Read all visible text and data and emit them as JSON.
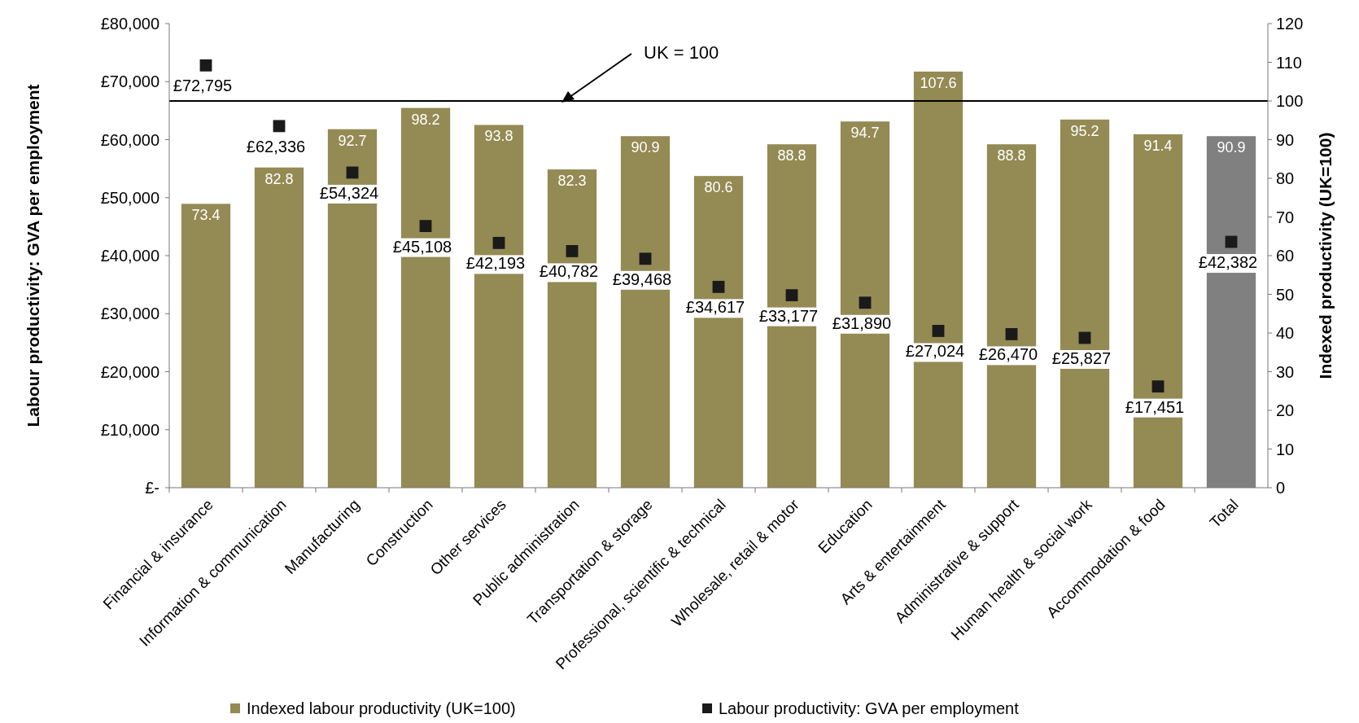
{
  "chart_data": {
    "type": "bar",
    "categories": [
      "Financial & insurance",
      "Information & communication",
      "Manufacturing",
      "Construction",
      "Other services",
      "Public administration",
      "Transportation & storage",
      "Professional, scientific & technical",
      "Wholesale, retail & motor",
      "Education",
      "Arts & entertainment",
      "Administrative & support",
      "Human health & social work",
      "Accommodation & food",
      "Total"
    ],
    "series": [
      {
        "name": "Indexed labour productivity (UK=100)",
        "axis": "y2",
        "color": "#948a54",
        "colors": [
          "#948a54",
          "#948a54",
          "#948a54",
          "#948a54",
          "#948a54",
          "#948a54",
          "#948a54",
          "#948a54",
          "#948a54",
          "#948a54",
          "#948a54",
          "#948a54",
          "#948a54",
          "#948a54",
          "#808080"
        ],
        "values": [
          73.4,
          82.8,
          92.7,
          98.2,
          93.8,
          82.3,
          90.9,
          80.6,
          88.8,
          94.7,
          107.6,
          88.8,
          95.2,
          91.4,
          90.9
        ]
      },
      {
        "name": "Labour productivity: GVA per employment",
        "type": "scatter",
        "color": "#1a1a1a",
        "marker": "square",
        "values": [
          72795,
          62336,
          54324,
          45108,
          42193,
          40782,
          39468,
          34617,
          33177,
          31890,
          27024,
          26470,
          25827,
          17451,
          42382
        ],
        "value_labels": [
          "£72,795",
          "£62,336",
          "£54,324",
          "£45,108",
          "£42,193",
          "£40,782",
          "£39,468",
          "£34,617",
          "£33,177",
          "£31,890",
          "£27,024",
          "£26,470",
          "£25,827",
          "£17,451",
          "£42,382"
        ]
      }
    ],
    "ylabel": "Labour productivity: GVA per employment",
    "y2label": "Indexed productivity (UK=100)",
    "ylim": [
      0,
      80000
    ],
    "yticks": [
      {
        "value": 0,
        "label": "£-"
      },
      {
        "value": 10000,
        "label": "£10,000"
      },
      {
        "value": 20000,
        "label": "£20,000"
      },
      {
        "value": 30000,
        "label": "£30,000"
      },
      {
        "value": 40000,
        "label": "£40,000"
      },
      {
        "value": 50000,
        "label": "£50,000"
      },
      {
        "value": 60000,
        "label": "£60,000"
      },
      {
        "value": 70000,
        "label": "£70,000"
      },
      {
        "value": 80000,
        "label": "£80,000"
      }
    ],
    "y2lim": [
      0,
      120
    ],
    "y2ticks": [
      0,
      10,
      20,
      30,
      40,
      50,
      60,
      70,
      80,
      90,
      100,
      110,
      120
    ],
    "ref_lines": [
      {
        "axis": "y2",
        "value": 100,
        "label": "UK = 100",
        "color": "#000000"
      }
    ],
    "data_labels": true,
    "legend": "bottom",
    "grid": false
  }
}
